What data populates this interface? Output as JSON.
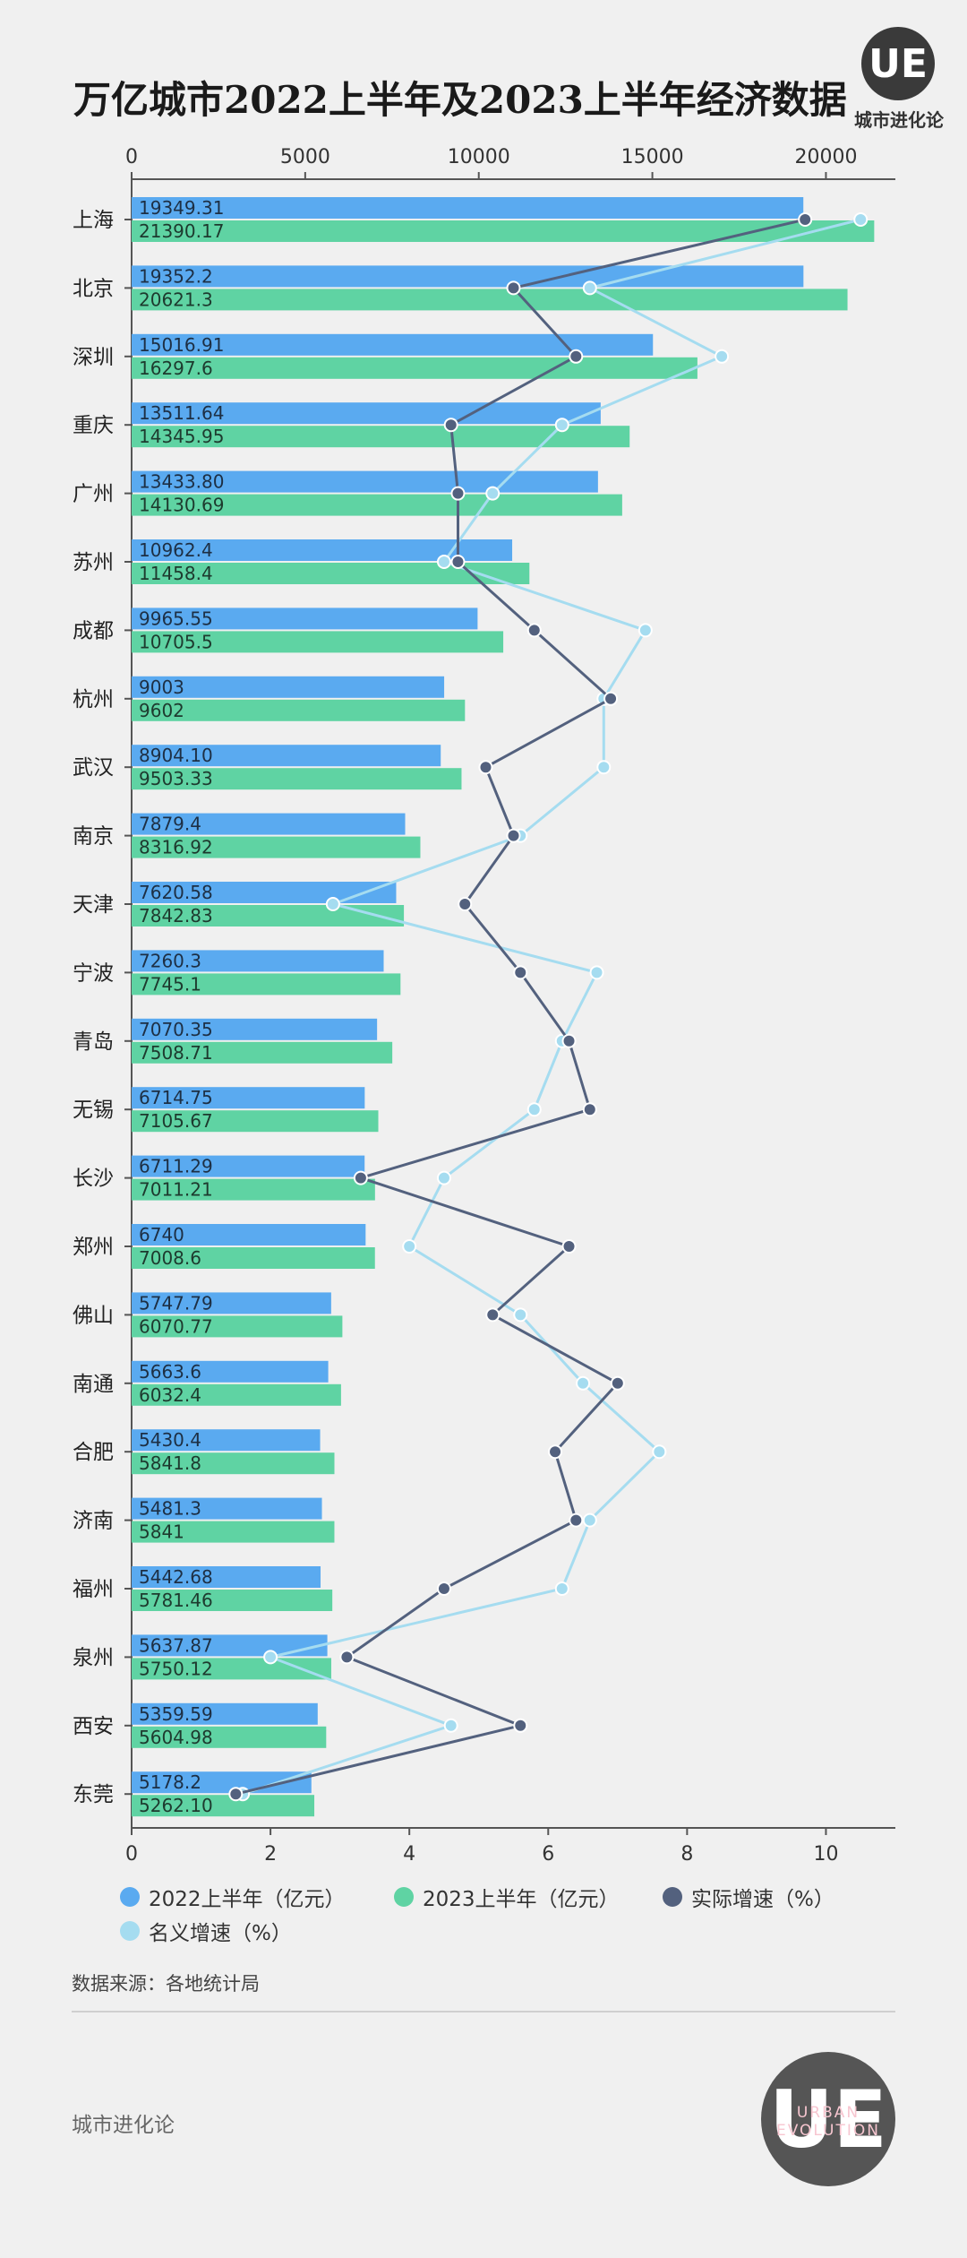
{
  "title": "万亿城市2022上半年及2023上半年经济数据",
  "logo": {
    "badge": "UE",
    "brand": "城市进化论"
  },
  "footer": {
    "source": "数据来源：各地统计局",
    "brand": "城市进化论",
    "logo_badge": "UE",
    "logo_ring": "URBAN EVOLUTION"
  },
  "colors": {
    "bar2022": "#5aaaf0",
    "bar2023": "#5fd3a3",
    "real": "#53617e",
    "nominal": "#a5dcf0"
  },
  "chart_data": {
    "type": "bar",
    "orientation": "horizontal",
    "categories": [
      "上海",
      "北京",
      "深圳",
      "重庆",
      "广州",
      "苏州",
      "成都",
      "杭州",
      "武汉",
      "南京",
      "天津",
      "宁波",
      "青岛",
      "无锡",
      "长沙",
      "郑州",
      "佛山",
      "南通",
      "合肥",
      "济南",
      "福州",
      "泉州",
      "西安",
      "东莞"
    ],
    "series": [
      {
        "name": "2022上半年（亿元）",
        "axis": "top",
        "labels": [
          "19349.31",
          "19352.2",
          "15016.91",
          "13511.64",
          "13433.80",
          "10962.4",
          "9965.55",
          "9003",
          "8904.10",
          "7879.4",
          "7620.58",
          "7260.3",
          "7070.35",
          "6714.75",
          "6711.29",
          "6740",
          "5747.79",
          "5663.6",
          "5430.4",
          "5481.3",
          "5442.68",
          "5637.87",
          "5359.59",
          "5178.2"
        ],
        "values": [
          19349.31,
          19352.2,
          15016.91,
          13511.64,
          13433.8,
          10962.4,
          9965.55,
          9003,
          8904.1,
          7879.4,
          7620.58,
          7260.3,
          7070.35,
          6714.75,
          6711.29,
          6740,
          5747.79,
          5663.6,
          5430.4,
          5481.3,
          5442.68,
          5637.87,
          5359.59,
          5178.2
        ]
      },
      {
        "name": "2023上半年（亿元）",
        "axis": "top",
        "labels": [
          "21390.17",
          "20621.3",
          "16297.6",
          "14345.95",
          "14130.69",
          "11458.4",
          "10705.5",
          "9602",
          "9503.33",
          "8316.92",
          "7842.83",
          "7745.1",
          "7508.71",
          "7105.67",
          "7011.21",
          "7008.6",
          "6070.77",
          "6032.4",
          "5841.8",
          "5841",
          "5781.46",
          "5750.12",
          "5604.98",
          "5262.10"
        ],
        "values": [
          21390.17,
          20621.3,
          16297.6,
          14345.95,
          14130.69,
          11458.4,
          10705.5,
          9602,
          9503.33,
          8316.92,
          7842.83,
          7745.1,
          7508.71,
          7105.67,
          7011.21,
          7008.6,
          6070.77,
          6032.4,
          5841.8,
          5841,
          5781.46,
          5750.12,
          5604.98,
          5262.1
        ]
      },
      {
        "name": "实际增速（%）",
        "axis": "bottom",
        "type": "line",
        "values": [
          9.7,
          5.5,
          6.4,
          4.6,
          4.7,
          4.7,
          5.8,
          6.9,
          5.1,
          5.5,
          4.8,
          5.6,
          6.3,
          6.6,
          3.3,
          6.3,
          5.2,
          7.0,
          6.1,
          6.4,
          4.5,
          3.1,
          5.6,
          1.5
        ]
      },
      {
        "name": "名义增速（%）",
        "axis": "bottom",
        "type": "line",
        "values": [
          10.5,
          6.6,
          8.5,
          6.2,
          5.2,
          4.5,
          7.4,
          6.8,
          6.8,
          5.6,
          2.9,
          6.7,
          6.2,
          5.8,
          4.5,
          4.0,
          5.6,
          6.5,
          7.6,
          6.6,
          6.2,
          2.0,
          4.6,
          1.6
        ]
      }
    ],
    "x_top": {
      "range": [
        0,
        22000
      ],
      "ticks": [
        "0",
        "5000",
        "10000",
        "15000",
        "20000"
      ],
      "tick_values": [
        0,
        5000,
        10000,
        15000,
        20000
      ]
    },
    "x_bottom": {
      "range": [
        0,
        11
      ],
      "ticks": [
        "0",
        "2",
        "4",
        "6",
        "8",
        "10"
      ],
      "tick_values": [
        0,
        2,
        4,
        6,
        8,
        10
      ]
    },
    "legend_position": "bottom",
    "grid": false
  }
}
